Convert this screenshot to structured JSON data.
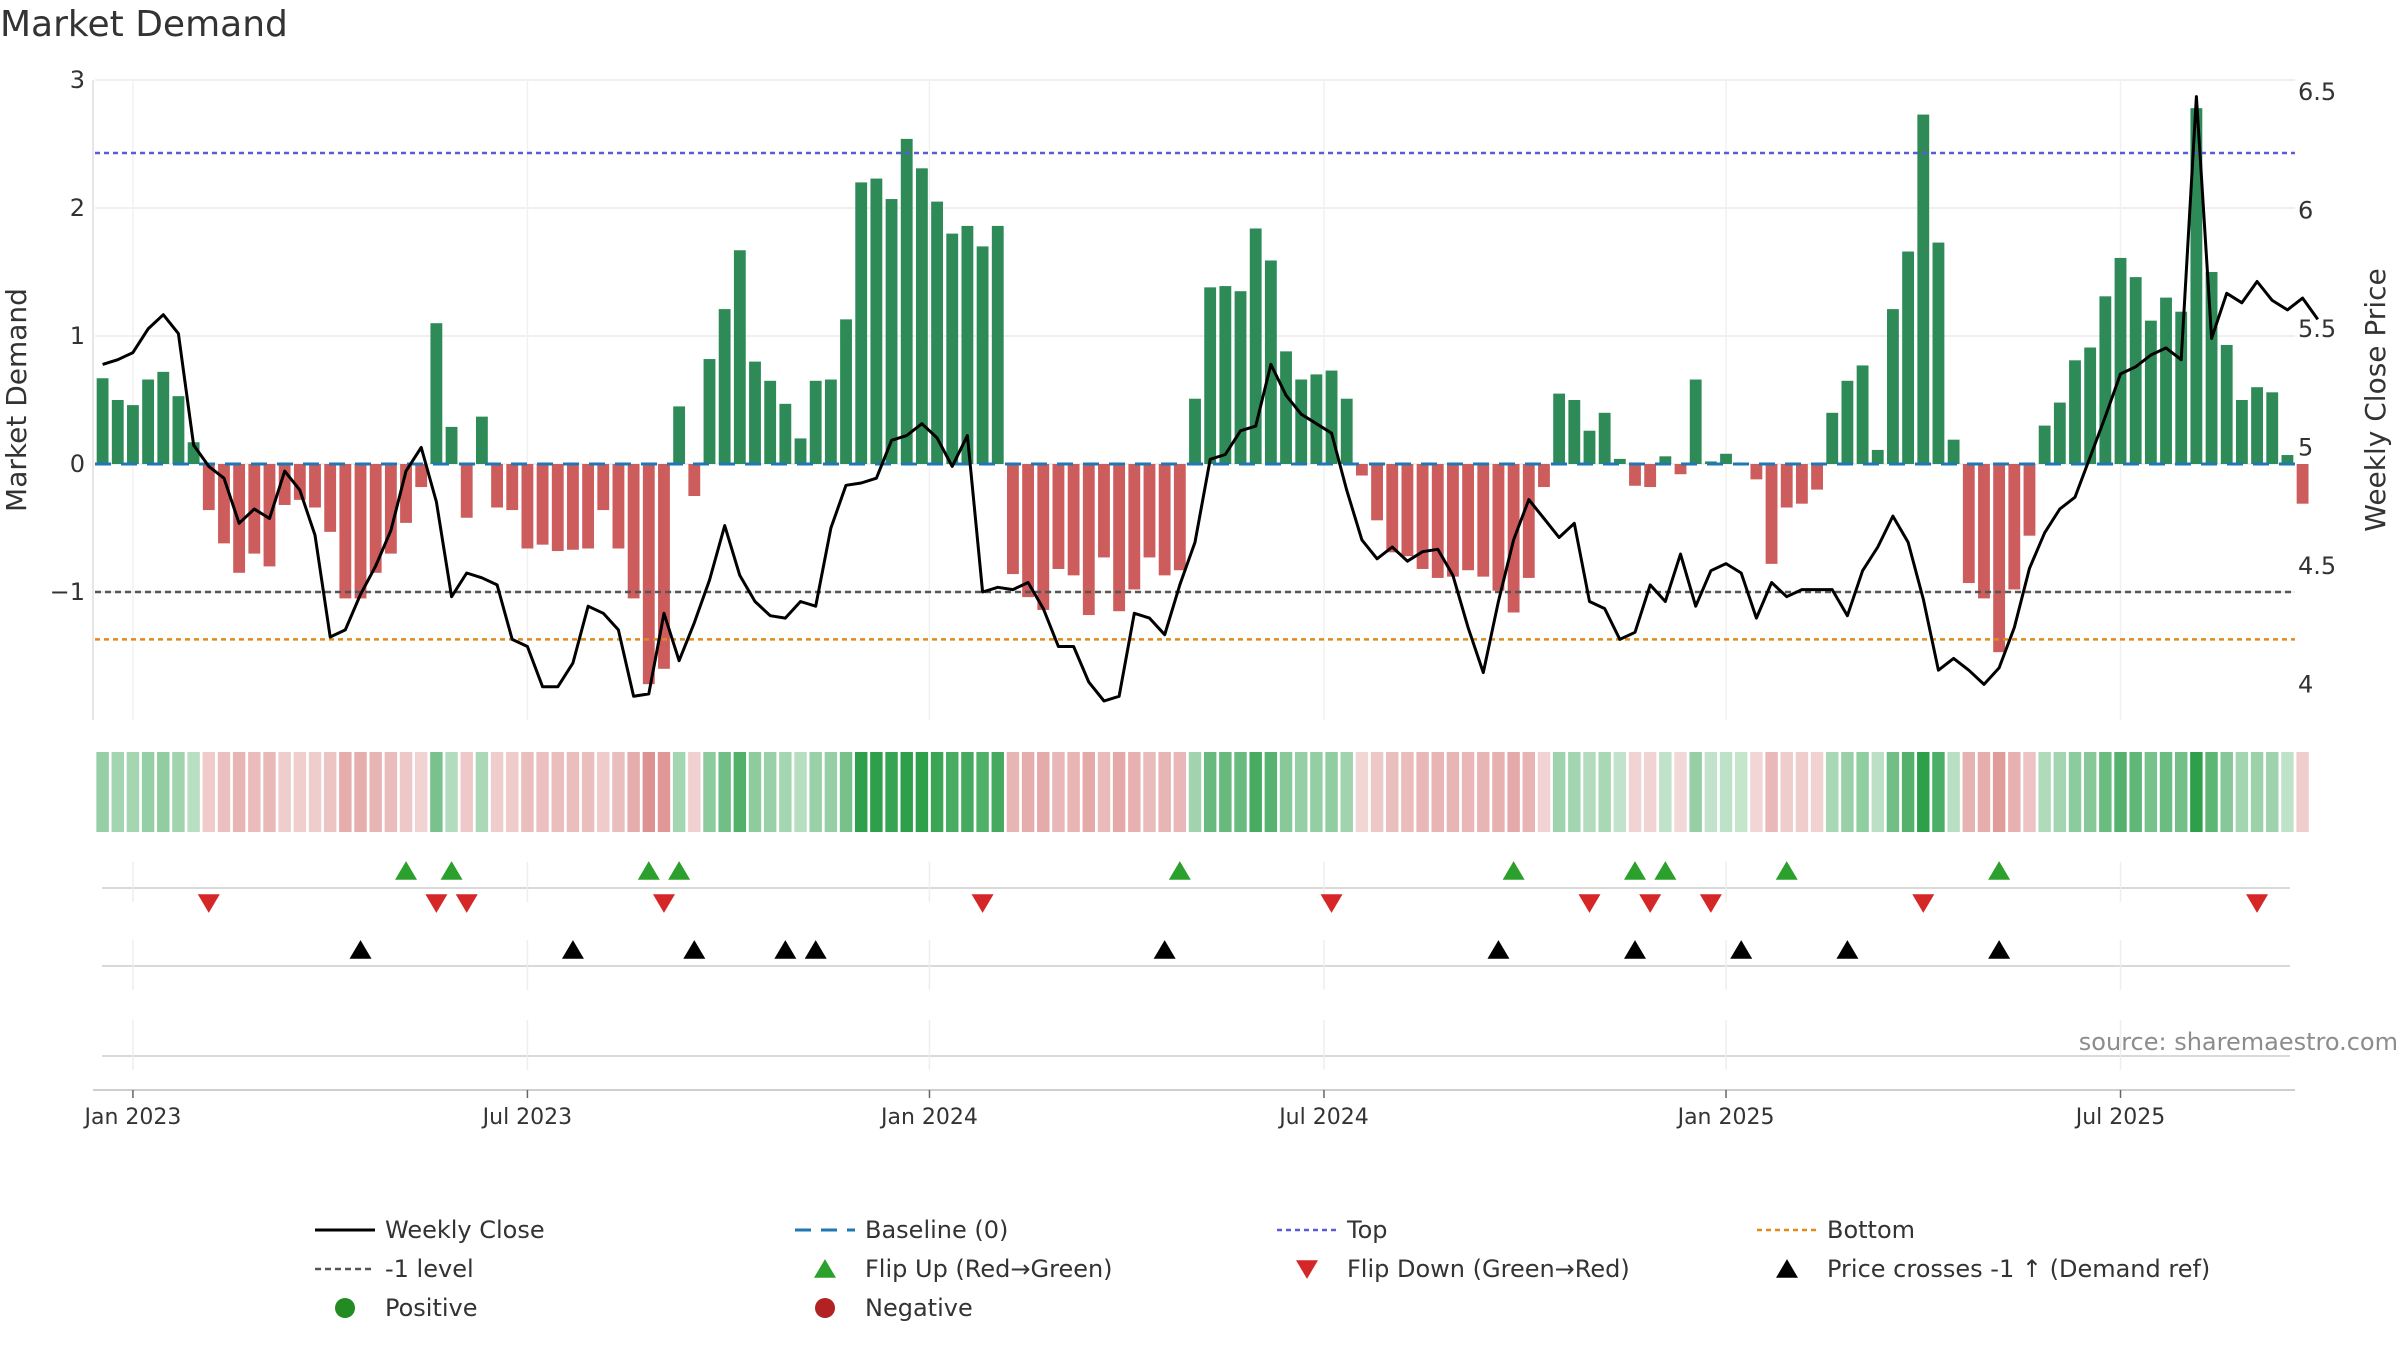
{
  "chart_data": {
    "type": "bar",
    "title": "Market Demand",
    "ylabel_left": "Market Demand",
    "ylabel_right": "Weekly Close Price",
    "source": "source: sharemaestro.com",
    "ylim_left": [
      -2.0,
      3.0
    ],
    "ylim_right": [
      3.85,
      6.55
    ],
    "yticks_left": [
      {
        "v": 3,
        "label": "3"
      },
      {
        "v": 2,
        "label": "2"
      },
      {
        "v": 1,
        "label": "1"
      },
      {
        "v": 0,
        "label": "0"
      },
      {
        "v": -1,
        "label": "−1"
      }
    ],
    "yticks_right": [
      {
        "v": 6.5,
        "label": "6.5"
      },
      {
        "v": 6,
        "label": "6"
      },
      {
        "v": 5.5,
        "label": "5.5"
      },
      {
        "v": 5,
        "label": "5"
      },
      {
        "v": 4.5,
        "label": "4.5"
      },
      {
        "v": 4,
        "label": "4"
      }
    ],
    "xticks": [
      {
        "week": 2,
        "label": "Jan 2023"
      },
      {
        "week": 28,
        "label": "Jul 2023"
      },
      {
        "week": 54.5,
        "label": "Jan 2024"
      },
      {
        "week": 80.5,
        "label": "Jul 2024"
      },
      {
        "week": 107,
        "label": "Jan 2025"
      },
      {
        "week": 133,
        "label": "Jul 2025"
      }
    ],
    "x_range": [
      -0.5,
      144.5
    ],
    "reference_lines": {
      "baseline": 0,
      "top": 2.43,
      "minus_one": -1,
      "bottom": -1.37
    },
    "demand": [
      0.67,
      0.5,
      0.46,
      0.66,
      0.72,
      0.53,
      0.17,
      -0.36,
      -0.62,
      -0.85,
      -0.7,
      -0.8,
      -0.32,
      -0.28,
      -0.34,
      -0.53,
      -1.05,
      -1.05,
      -0.85,
      -0.7,
      -0.46,
      -0.18,
      1.1,
      0.29,
      -0.42,
      0.37,
      -0.34,
      -0.36,
      -0.66,
      -0.63,
      -0.68,
      -0.67,
      -0.66,
      -0.36,
      -0.66,
      -1.05,
      -1.72,
      -1.6,
      0.45,
      -0.25,
      0.82,
      1.21,
      1.67,
      0.8,
      0.65,
      0.47,
      0.2,
      0.65,
      0.66,
      1.13,
      2.2,
      2.23,
      2.07,
      2.54,
      2.31,
      2.05,
      1.8,
      1.86,
      1.7,
      1.86,
      -0.86,
      -1.04,
      -1.14,
      -0.82,
      -0.87,
      -1.18,
      -0.73,
      -1.15,
      -0.98,
      -0.73,
      -0.87,
      -0.83,
      0.51,
      1.38,
      1.39,
      1.35,
      1.84,
      1.59,
      0.88,
      0.66,
      0.7,
      0.73,
      0.51,
      -0.09,
      -0.44,
      -0.69,
      -0.72,
      -0.82,
      -0.89,
      -0.88,
      -0.83,
      -0.88,
      -0.99,
      -1.16,
      -0.89,
      -0.18,
      0.55,
      0.5,
      0.26,
      0.4,
      0.04,
      -0.17,
      -0.18,
      0.06,
      -0.08,
      0.66,
      0.02,
      0.08,
      0.01,
      -0.12,
      -0.78,
      -0.34,
      -0.31,
      -0.2,
      0.4,
      0.65,
      0.77,
      0.11,
      1.21,
      1.66,
      2.73,
      1.73,
      0.19,
      -0.93,
      -1.05,
      -1.47,
      -0.98,
      -0.56,
      0.3,
      0.48,
      0.81,
      0.91,
      1.31,
      1.61,
      1.46,
      1.12,
      1.3,
      1.19,
      2.78,
      1.5,
      0.93,
      0.5,
      0.6,
      0.56,
      0.07,
      -0.31
    ],
    "weekly_close": [
      5.35,
      5.37,
      5.4,
      5.5,
      5.56,
      5.48,
      5.01,
      4.92,
      4.87,
      4.68,
      4.74,
      4.7,
      4.9,
      4.82,
      4.63,
      4.2,
      4.23,
      4.38,
      4.5,
      4.65,
      4.9,
      5.0,
      4.77,
      4.37,
      4.47,
      4.45,
      4.42,
      4.19,
      4.16,
      3.99,
      3.99,
      4.09,
      4.33,
      4.3,
      4.23,
      3.95,
      3.96,
      4.3,
      4.1,
      4.26,
      4.44,
      4.67,
      4.46,
      4.35,
      4.29,
      4.28,
      4.35,
      4.33,
      4.66,
      4.84,
      4.85,
      4.87,
      5.03,
      5.05,
      5.1,
      5.04,
      4.92,
      5.05,
      4.39,
      4.41,
      4.4,
      4.43,
      4.32,
      4.16,
      4.16,
      4.01,
      3.93,
      3.95,
      4.3,
      4.28,
      4.21,
      4.42,
      4.6,
      4.95,
      4.97,
      5.07,
      5.09,
      5.35,
      5.22,
      5.14,
      5.1,
      5.06,
      4.82,
      4.61,
      4.53,
      4.58,
      4.52,
      4.56,
      4.57,
      4.46,
      4.24,
      4.05,
      4.35,
      4.61,
      4.78,
      4.7,
      4.62,
      4.68,
      4.35,
      4.32,
      4.19,
      4.22,
      4.42,
      4.35,
      4.55,
      4.33,
      4.48,
      4.51,
      4.47,
      4.28,
      4.43,
      4.37,
      4.4,
      4.4,
      4.4,
      4.29,
      4.48,
      4.58,
      4.71,
      4.6,
      4.36,
      4.06,
      4.11,
      4.06,
      4.0,
      4.07,
      4.24,
      4.49,
      4.64,
      4.74,
      4.79,
      4.96,
      5.13,
      5.31,
      5.34,
      5.39,
      5.42,
      5.37,
      6.48,
      5.46,
      5.65,
      5.61,
      5.7,
      5.62,
      5.58,
      5.63,
      5.54
    ],
    "flip_up_weeks": [
      20,
      23,
      36,
      38,
      71,
      93,
      101,
      103,
      111,
      125
    ],
    "flip_down_weeks": [
      7,
      22,
      24,
      37,
      58,
      81,
      98,
      102,
      106,
      120,
      142
    ],
    "price_cross_weeks": [
      17,
      31,
      39,
      45,
      47,
      70,
      92,
      101,
      108,
      115,
      125
    ]
  },
  "legend": {
    "weekly_close": "Weekly Close",
    "baseline": "Baseline (0)",
    "top": "Top",
    "bottom": "Bottom",
    "minus_one": "-1 level",
    "flip_up": "Flip Up (Red→Green)",
    "flip_down": "Flip Down (Green→Red)",
    "price_cross": "Price crosses -1 ↑ (Demand ref)",
    "positive": "Positive",
    "negative": "Negative"
  },
  "colors": {
    "positive_bar": "#2e8b57",
    "negative_bar": "#cd5c5c",
    "price_line": "#000000",
    "baseline": "#1f77b4",
    "top": "#5b5bd6",
    "bottom": "#e08a1e",
    "minus_one": "#555555",
    "flip_up": "#2ca02c",
    "flip_down": "#d62728",
    "cross": "#000000",
    "positive_dot": "#228b22",
    "negative_dot": "#b22222"
  }
}
